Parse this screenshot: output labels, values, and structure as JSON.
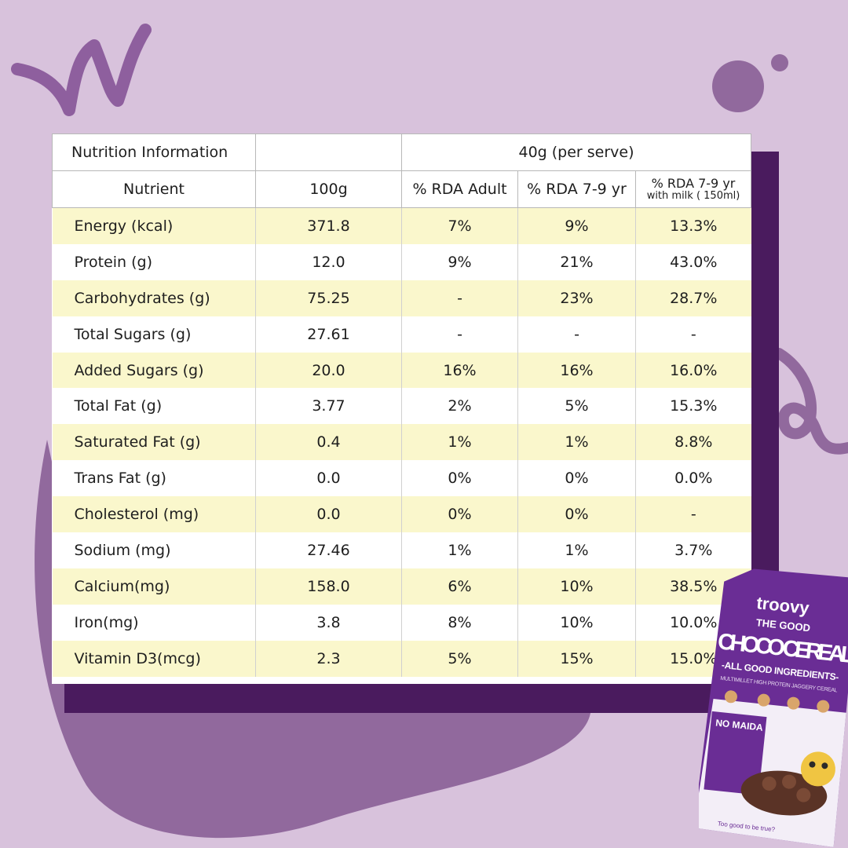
{
  "table": {
    "title": "Nutrition Information",
    "serve_header": "40g (per serve)",
    "columns": {
      "nutrient": "Nutrient",
      "per100": "100g",
      "rda_adult": "% RDA Adult",
      "rda_kids": "% RDA 7-9 yr",
      "rda_milk_top": "% RDA 7-9 yr",
      "rda_milk_bottom": "with milk ( 150ml)"
    },
    "rows": [
      {
        "nutrient": "Energy (kcal)",
        "per100": "371.8",
        "rda_adult": "7%",
        "rda_kids": "9%",
        "rda_milk": "13.3%"
      },
      {
        "nutrient": "Protein (g)",
        "per100": "12.0",
        "rda_adult": "9%",
        "rda_kids": "21%",
        "rda_milk": "43.0%"
      },
      {
        "nutrient": "Carbohydrates (g)",
        "per100": "75.25",
        "rda_adult": "-",
        "rda_kids": "23%",
        "rda_milk": "28.7%"
      },
      {
        "nutrient": "Total Sugars (g)",
        "per100": "27.61",
        "rda_adult": "-",
        "rda_kids": "-",
        "rda_milk": "-"
      },
      {
        "nutrient": "Added Sugars (g)",
        "per100": "20.0",
        "rda_adult": "16%",
        "rda_kids": "16%",
        "rda_milk": "16.0%"
      },
      {
        "nutrient": "Total Fat (g)",
        "per100": "3.77",
        "rda_adult": "2%",
        "rda_kids": "5%",
        "rda_milk": "15.3%"
      },
      {
        "nutrient": "Saturated Fat (g)",
        "per100": "0.4",
        "rda_adult": "1%",
        "rda_kids": "1%",
        "rda_milk": "8.8%"
      },
      {
        "nutrient": "Trans Fat (g)",
        "per100": "0.0",
        "rda_adult": "0%",
        "rda_kids": "0%",
        "rda_milk": "0.0%"
      },
      {
        "nutrient": "Cholesterol (mg)",
        "per100": "0.0",
        "rda_adult": "0%",
        "rda_kids": "0%",
        "rda_milk": "-"
      },
      {
        "nutrient": "Sodium (mg)",
        "per100": "27.46",
        "rda_adult": "1%",
        "rda_kids": "1%",
        "rda_milk": "3.7%"
      },
      {
        "nutrient": "Calcium(mg)",
        "per100": "158.0",
        "rda_adult": "6%",
        "rda_kids": "10%",
        "rda_milk": "38.5%"
      },
      {
        "nutrient": "Iron(mg)",
        "per100": "3.8",
        "rda_adult": "8%",
        "rda_kids": "10%",
        "rda_milk": "10.0%"
      },
      {
        "nutrient": "Vitamin D3(mcg)",
        "per100": "2.3",
        "rda_adult": "5%",
        "rda_kids": "15%",
        "rda_milk": "15.0%"
      }
    ]
  },
  "package": {
    "brand": "troovy",
    "line1": "THE GOOD",
    "line2": "CHOCO CEREAL",
    "tagline": "-ALL GOOD INGREDIENTS-",
    "subtitle": "MULTIMILLET HIGH PROTEIN JAGGERY CEREAL",
    "badge_title": "NO MAIDA",
    "footer": "Too good to be true?"
  },
  "colors": {
    "background": "#d8c2dc",
    "shadow": "#4a1b5e",
    "blob": "#91699d",
    "row_highlight": "#faf7cc",
    "package": "#6a2d95"
  }
}
